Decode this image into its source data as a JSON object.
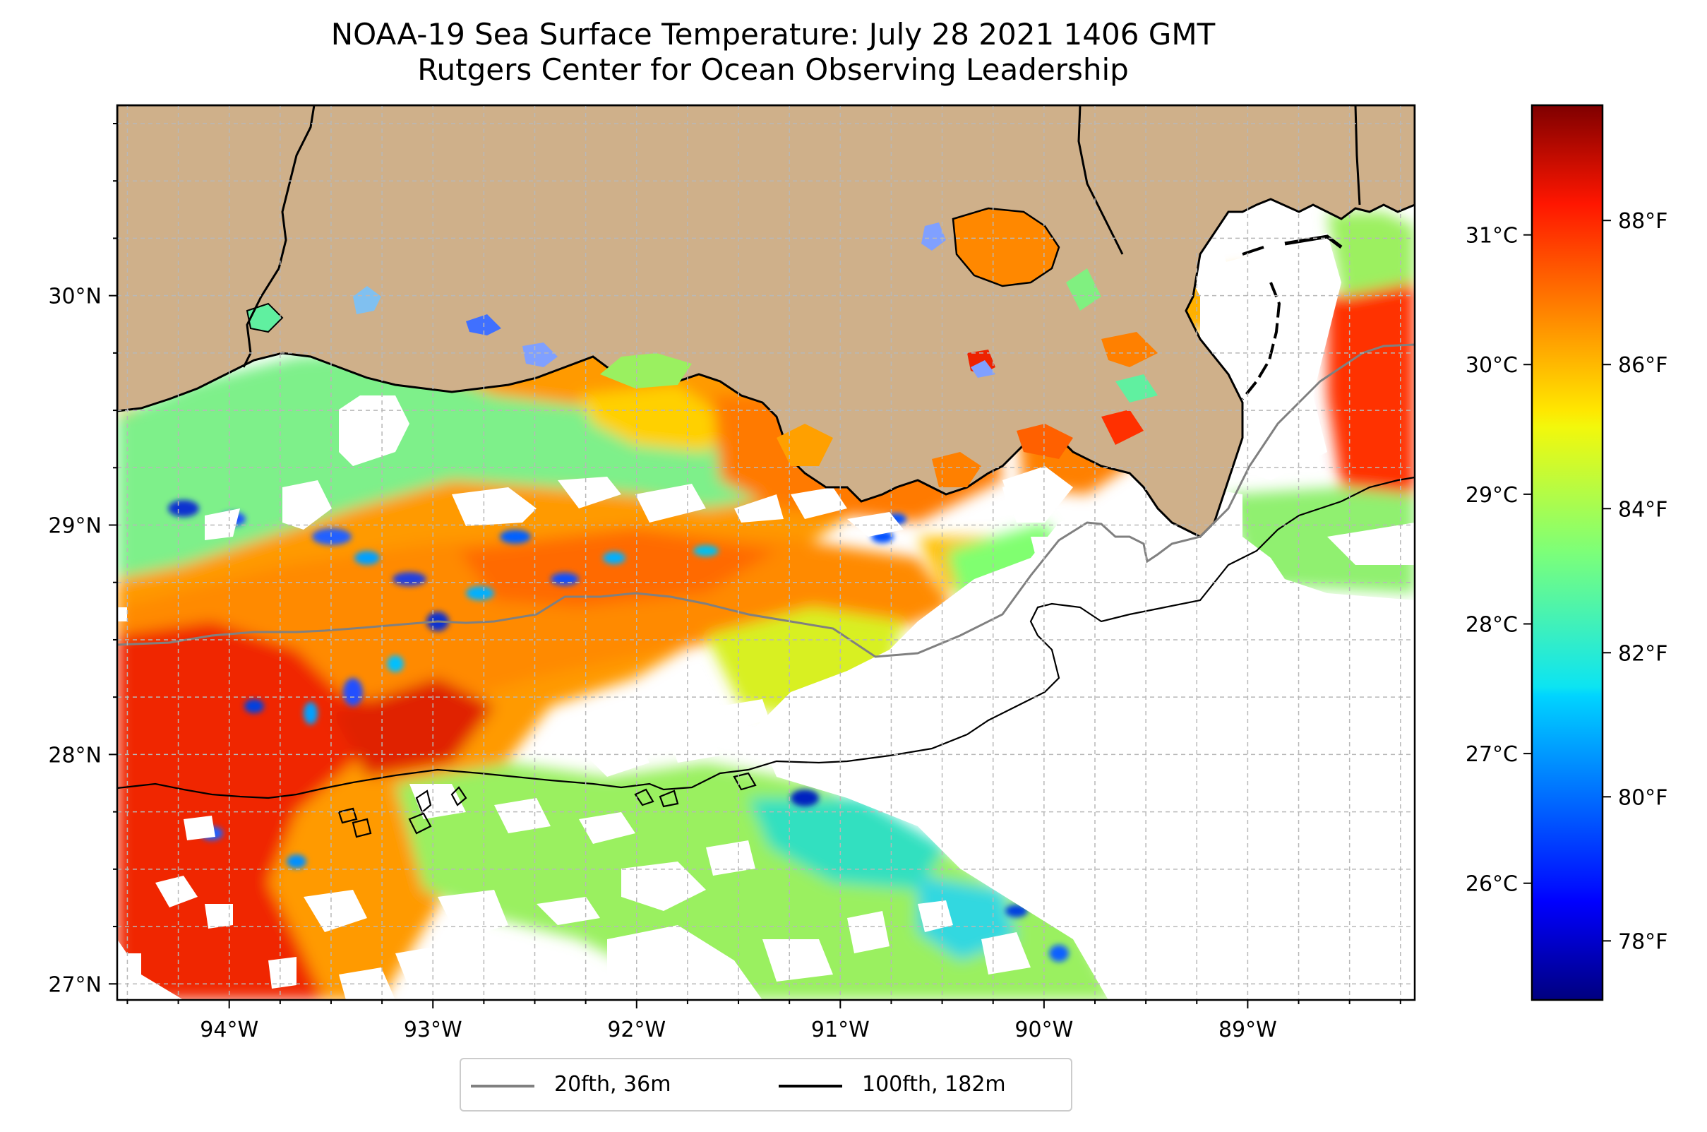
{
  "title": {
    "line1": "NOAA-19 Sea Surface Temperature: July 28 2021 1406 GMT",
    "line2": "Rutgers Center for Ocean Observing Leadership"
  },
  "map": {
    "lon_range": [
      -94.55,
      -88.18
    ],
    "lat_range": [
      26.93,
      30.83
    ],
    "lon_ticks": [
      {
        "value": -94,
        "label": "94°W"
      },
      {
        "value": -93,
        "label": "93°W"
      },
      {
        "value": -92,
        "label": "92°W"
      },
      {
        "value": -91,
        "label": "91°W"
      },
      {
        "value": -90,
        "label": "90°W"
      },
      {
        "value": -89,
        "label": "89°W"
      }
    ],
    "lat_ticks": [
      {
        "value": 27,
        "label": "27°N"
      },
      {
        "value": 28,
        "label": "28°N"
      },
      {
        "value": 29,
        "label": "29°N"
      },
      {
        "value": 30,
        "label": "30°N"
      }
    ],
    "grid": true,
    "land_color": "#cfb08a",
    "no_data_color": "#ffffff"
  },
  "colorbar": {
    "colormap": "jet",
    "celsius_range": [
      25.1,
      32.0
    ],
    "celsius_ticks": [
      {
        "value": 26,
        "label": "26°C"
      },
      {
        "value": 27,
        "label": "27°C"
      },
      {
        "value": 28,
        "label": "28°C"
      },
      {
        "value": 29,
        "label": "29°C"
      },
      {
        "value": 30,
        "label": "30°C"
      },
      {
        "value": 31,
        "label": "31°C"
      }
    ],
    "fahrenheit_ticks": [
      {
        "value": 78,
        "label": "78°F"
      },
      {
        "value": 80,
        "label": "80°F"
      },
      {
        "value": 82,
        "label": "82°F"
      },
      {
        "value": 84,
        "label": "84°F"
      },
      {
        "value": 86,
        "label": "86°F"
      },
      {
        "value": 88,
        "label": "88°F"
      }
    ]
  },
  "legend": {
    "placement": "bottom-center",
    "items": [
      {
        "label": "20fth, 36m",
        "color": "#808080"
      },
      {
        "label": "100fth, 182m",
        "color": "#000000"
      }
    ]
  }
}
